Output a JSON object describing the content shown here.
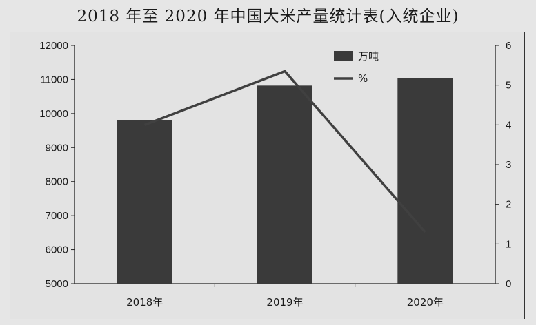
{
  "title": "2018 年至 2020 年中国大米产量统计表(入统企业)",
  "chart_data": {
    "type": "bar",
    "categories": [
      "2018年",
      "2019年",
      "2020年"
    ],
    "series": [
      {
        "name": "万吨",
        "type": "bar",
        "axis": "left",
        "values": [
          9800,
          10820,
          11040
        ],
        "color": "#3a3a3a"
      },
      {
        "name": "%",
        "type": "line",
        "axis": "right",
        "values": [
          4.0,
          5.35,
          1.3
        ],
        "color": "#404040"
      }
    ],
    "y_left": {
      "ylim": [
        5000,
        12000
      ],
      "ticks": [
        "5000",
        "6000",
        "7000",
        "8000",
        "9000",
        "10000",
        "11000",
        "12000"
      ]
    },
    "y_right": {
      "ylim": [
        0,
        6
      ],
      "ticks": [
        "0",
        "1",
        "2",
        "3",
        "4",
        "5",
        "6"
      ]
    },
    "legend": {
      "position": "top-right",
      "entries": [
        "万吨",
        "%"
      ]
    },
    "grid": false
  }
}
